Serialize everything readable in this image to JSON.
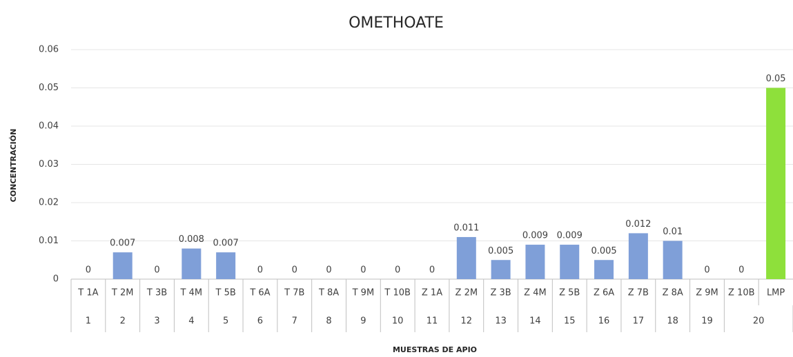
{
  "chart_data": {
    "type": "bar",
    "title": "OMETHOATE",
    "x_label": "MUESTRAS DE APIO",
    "y_label": "CONCENTRACIÓN",
    "categories": [
      "T 1A",
      "T 2M",
      "T 3B",
      "T 4M",
      "T 5B",
      "T 6A",
      "T 7B",
      "T 8A",
      "T 9M",
      "T 10B",
      "Z 1A",
      "Z 2M",
      "Z 3B",
      "Z 4M",
      "Z 5B",
      "Z 6A",
      "Z 7B",
      "Z 8A",
      "Z 9M",
      "Z 10B",
      "LMP"
    ],
    "groups": [
      {
        "label": "1",
        "size": 1
      },
      {
        "label": "2",
        "size": 1
      },
      {
        "label": "3",
        "size": 1
      },
      {
        "label": "4",
        "size": 1
      },
      {
        "label": "5",
        "size": 1
      },
      {
        "label": "6",
        "size": 1
      },
      {
        "label": "7",
        "size": 1
      },
      {
        "label": "8",
        "size": 1
      },
      {
        "label": "9",
        "size": 1
      },
      {
        "label": "10",
        "size": 1
      },
      {
        "label": "11",
        "size": 1
      },
      {
        "label": "12",
        "size": 1
      },
      {
        "label": "13",
        "size": 1
      },
      {
        "label": "14",
        "size": 1
      },
      {
        "label": "15",
        "size": 1
      },
      {
        "label": "16",
        "size": 1
      },
      {
        "label": "17",
        "size": 1
      },
      {
        "label": "18",
        "size": 1
      },
      {
        "label": "19",
        "size": 1
      },
      {
        "label": "20",
        "size": 2
      }
    ],
    "values": [
      0,
      0.007,
      0,
      0.008,
      0.007,
      0,
      0,
      0,
      0,
      0,
      0,
      0.011,
      0.005,
      0.009,
      0.009,
      0.005,
      0.012,
      0.01,
      0,
      0,
      0.05
    ],
    "colors": [
      "#7f9fd8",
      "#7f9fd8",
      "#7f9fd8",
      "#7f9fd8",
      "#7f9fd8",
      "#7f9fd8",
      "#7f9fd8",
      "#7f9fd8",
      "#7f9fd8",
      "#7f9fd8",
      "#7f9fd8",
      "#7f9fd8",
      "#7f9fd8",
      "#7f9fd8",
      "#7f9fd8",
      "#7f9fd8",
      "#7f9fd8",
      "#7f9fd8",
      "#7f9fd8",
      "#7f9fd8",
      "#8ee03b"
    ],
    "ylim": [
      0,
      0.06
    ],
    "yticks": [
      0,
      0.01,
      0.02,
      0.03,
      0.04,
      0.05,
      0.06
    ],
    "grid": true
  }
}
